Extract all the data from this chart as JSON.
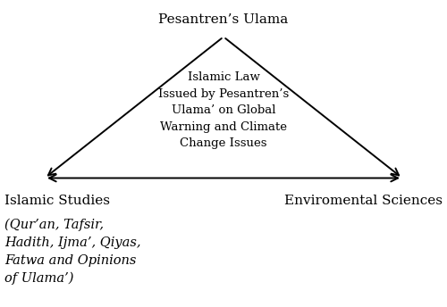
{
  "bg_color": "#ffffff",
  "triangle_color": "#000000",
  "arrow_color": "#000000",
  "top_label": "Pesantren’s Ulama",
  "center_text_lines": [
    "Islamic Law",
    "Issued by Pesantren’s",
    "Ulama’ on Global",
    "Warning and Climate",
    "Change Issues"
  ],
  "left_label": "Islamic Studies",
  "left_sublabel_lines": [
    "(Qur’an, Tafsir,",
    "Hadith, Ijma’, Qiyas,",
    "Fatwa and Opinions",
    "of Ulama’)"
  ],
  "right_label": "Enviromental Sciences",
  "figsize": [
    5.0,
    3.44
  ],
  "dpi": 100
}
